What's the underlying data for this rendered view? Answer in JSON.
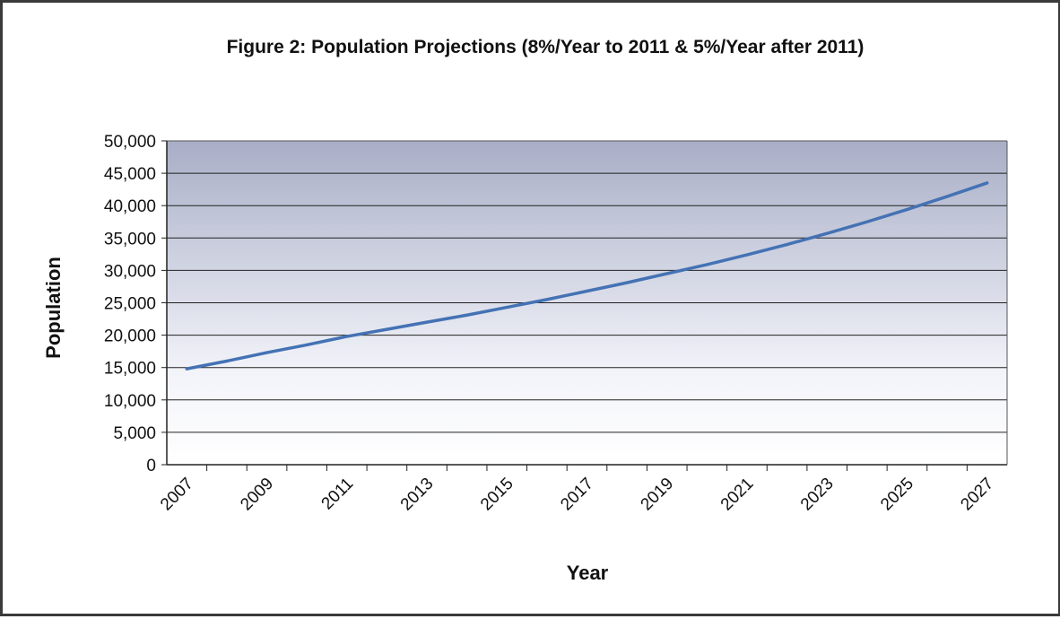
{
  "chart_data": {
    "type": "line",
    "title": "Figure 2:  Population Projections (8%/Year to 2011 & 5%/Year after 2011)",
    "xlabel": "Year",
    "ylabel": "Population",
    "x_tick_labels": [
      "2007",
      "2009",
      "2011",
      "2013",
      "2015",
      "2017",
      "2019",
      "2021",
      "2023",
      "2025",
      "2027"
    ],
    "y_tick_labels": [
      "0",
      "5,000",
      "10,000",
      "15,000",
      "20,000",
      "25,000",
      "30,000",
      "35,000",
      "40,000",
      "45,000",
      "50,000"
    ],
    "ylim": [
      0,
      50000
    ],
    "grid": true,
    "legend": "none",
    "series": [
      {
        "x": [
          2007,
          2008,
          2009,
          2010,
          2011,
          2012,
          2013,
          2014,
          2015,
          2016,
          2017,
          2018,
          2019,
          2020,
          2021,
          2022,
          2023,
          2024,
          2025,
          2026,
          2027
        ],
        "values": [
          14800,
          16000,
          17300,
          18500,
          19800,
          20900,
          22000,
          23100,
          24300,
          25500,
          26800,
          28100,
          29500,
          30900,
          32400,
          34000,
          35700,
          37500,
          39400,
          41400,
          43500
        ],
        "color": "#4472b4"
      }
    ],
    "colors": {
      "plot_top": "#a8aec6",
      "plot_bottom": "#f3f4fa",
      "gridline": "#222222",
      "line": "#4472b4"
    }
  }
}
